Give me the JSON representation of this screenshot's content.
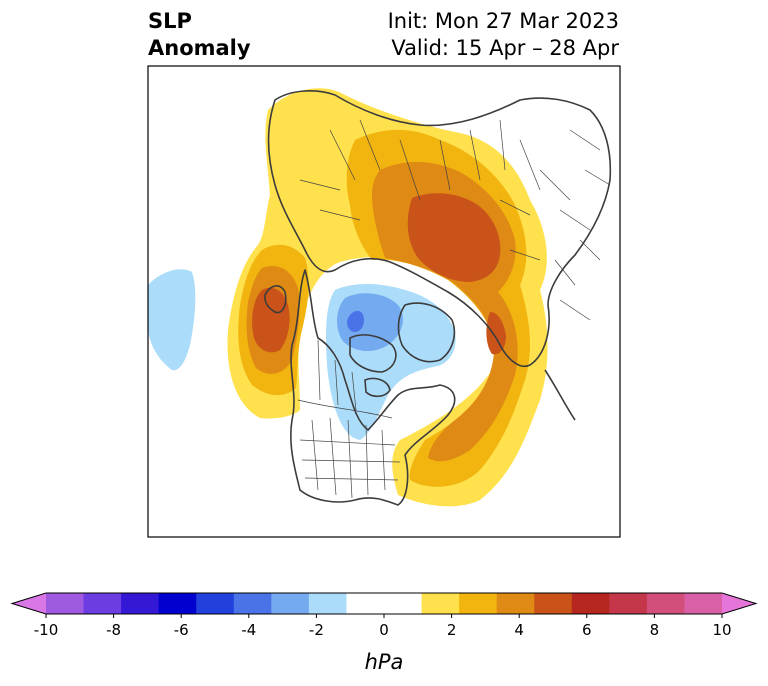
{
  "title": {
    "variable_line1": "SLP",
    "variable_line2": "Anomaly",
    "init": "Init: Mon 27 Mar 2023",
    "valid": "Valid: 15 Apr – 28 Apr"
  },
  "colorbar": {
    "unit": "hPa",
    "tick_labels": [
      "-10",
      "-8",
      "-6",
      "-4",
      "-2",
      "0",
      "2",
      "4",
      "6",
      "8",
      "10"
    ],
    "min": -10,
    "max": 10,
    "colors": [
      "#d977e6",
      "#a05ae0",
      "#6c3de0",
      "#3319d6",
      "#0000cf",
      "#2240dc",
      "#4a73e8",
      "#73aaf0",
      "#abdcfa",
      "#ffffff",
      "#ffffff",
      "#ffe14d",
      "#f2b50f",
      "#de8a14",
      "#c95319",
      "#b5261f",
      "#c4374a",
      "#d14f7a",
      "#d960a6",
      "#e575d8"
    ]
  },
  "map": {
    "projection": "north-polar-stereographic",
    "region": "Northern Hemisphere",
    "anomaly_colors": {
      "light_blue": "#abdcfa",
      "mid_blue": "#73aaf0",
      "blue": "#4a73e8",
      "yellow": "#ffe14d",
      "gold": "#f2b50f",
      "orange": "#de8a14",
      "red_orange": "#c95319"
    }
  }
}
